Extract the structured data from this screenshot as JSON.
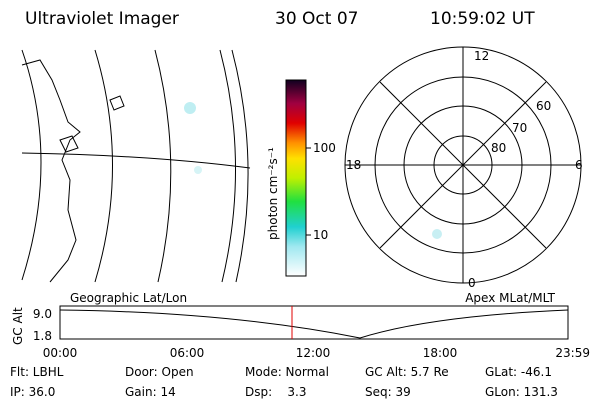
{
  "header": {
    "title": "Ultraviolet Imager",
    "date": "30 Oct 07",
    "time": "10:59:02 UT"
  },
  "colorbar": {
    "label": "photon cm⁻²s⁻¹",
    "ticks": [
      "100",
      "10"
    ]
  },
  "polar": {
    "hours": [
      "12",
      "18",
      "6",
      "0"
    ],
    "latitudes": [
      "60",
      "70",
      "80"
    ]
  },
  "timeline": {
    "left_label": "Geographic Lat/Lon",
    "right_label": "Apex MLat/MLT",
    "ylabel": "GC Alt",
    "yticks": [
      "9.0",
      "1.8"
    ],
    "xticks": [
      "00:00",
      "06:00",
      "12:00",
      "18:00",
      "23:59"
    ]
  },
  "footer": {
    "rows": [
      [
        "Flt: LBHL",
        "Door: Open",
        "Mode: Normal",
        "GC Alt: 5.7 Re",
        "GLat: -46.1"
      ],
      [
        "IP: 36.0",
        "Gain: 14",
        "Dsp:    3.3",
        "Seq: 39",
        "GLon: 131.3"
      ]
    ]
  }
}
